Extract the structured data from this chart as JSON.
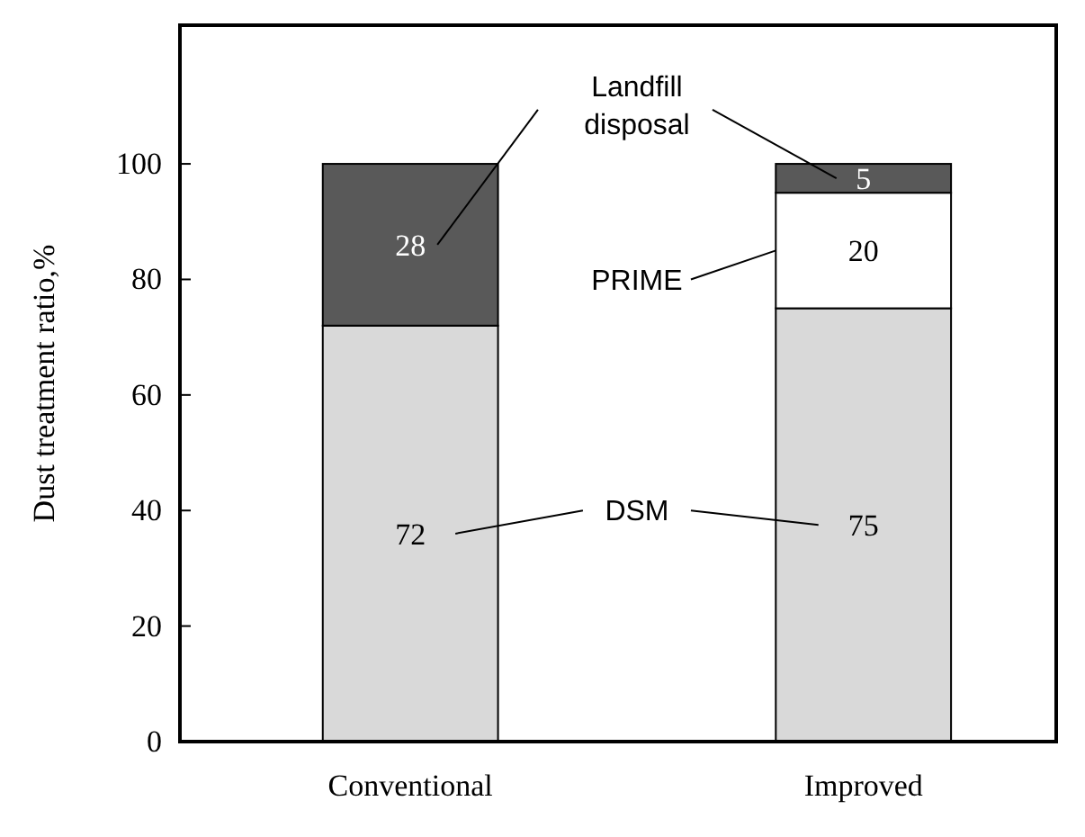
{
  "chart_data": {
    "type": "bar",
    "stacked": true,
    "ylabel": "Dust treatment ratio,%",
    "categories": [
      "Conventional",
      "Improved"
    ],
    "series": [
      {
        "name": "DSM",
        "color": "#d9d9d9",
        "values": [
          72,
          75
        ]
      },
      {
        "name": "PRIME",
        "color": "#ffffff",
        "values": [
          null,
          20
        ]
      },
      {
        "name": "Landfill disposal",
        "color": "#595959",
        "values": [
          28,
          5
        ]
      }
    ],
    "ylim": [
      0,
      124
    ],
    "yticks": [
      0,
      20,
      40,
      60,
      80,
      100
    ],
    "data_labels": true,
    "legend": "center",
    "grid": false
  }
}
